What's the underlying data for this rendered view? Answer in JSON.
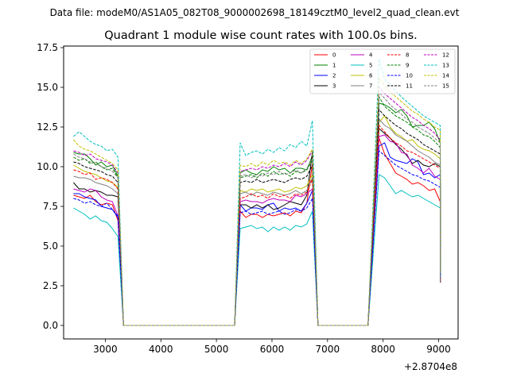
{
  "chart_data": {
    "type": "line",
    "suptitle": "Data file: modeM0/AS1A05_082T08_9000002698_18149cztM0_level2_quad_clean.evt",
    "title": "Quadrant 1 module wise count rates with 100.0s bins.",
    "xlabel": "",
    "ylabel": "",
    "x_offset_label": "+2.8704e8",
    "xlim": [
      2250,
      9350
    ],
    "ylim": [
      -0.85,
      17.6
    ],
    "x_ticks": [
      3000,
      4000,
      5000,
      6000,
      7000,
      8000,
      9000
    ],
    "y_ticks": [
      0.0,
      2.5,
      5.0,
      7.5,
      10.0,
      12.5,
      15.0,
      17.5
    ],
    "x_tick_labels": [
      "3000",
      "4000",
      "5000",
      "6000",
      "7000",
      "8000",
      "9000"
    ],
    "y_tick_labels": [
      "0.0",
      "2.5",
      "5.0",
      "7.5",
      "10.0",
      "12.5",
      "15.0",
      "17.5"
    ],
    "legend_location": "upper right",
    "segments": [
      {
        "x_start": 2427.6,
        "count": 9,
        "gap_after": 21
      },
      {
        "x_start": 5427.6,
        "count": 14,
        "gap_after": 10
      },
      {
        "x_start": 7927.6,
        "count": 12,
        "gap_after": 0
      }
    ],
    "series": [
      {
        "name": "0",
        "color": "#ff0000",
        "dash": "solid",
        "seg_values": [
          [
            8.2,
            8.1,
            8.0,
            8.2,
            7.8,
            7.6,
            7.7,
            7.6,
            6.6
          ],
          [
            7.2,
            6.8,
            7.0,
            7.0,
            6.8,
            7.0,
            6.9,
            7.0,
            7.1,
            6.9,
            7.2,
            7.1,
            7.7,
            10.2
          ],
          [
            11.8,
            10.8,
            10.2,
            9.6,
            9.4,
            9.2,
            8.9,
            9.0,
            8.8,
            8.5,
            8.6,
            7.8
          ]
        ]
      },
      {
        "name": "1",
        "color": "#008000",
        "dash": "solid",
        "seg_values": [
          [
            10.9,
            10.8,
            10.8,
            10.5,
            10.1,
            10.3,
            10.0,
            10.1,
            9.4
          ],
          [
            9.6,
            9.8,
            9.6,
            9.5,
            9.8,
            9.7,
            10.0,
            9.8,
            9.9,
            9.6,
            9.9,
            9.9,
            9.8,
            10.7
          ],
          [
            14.0,
            13.9,
            13.7,
            13.4,
            13.6,
            13.2,
            12.5,
            12.6,
            12.6,
            12.8,
            12.4,
            11.5
          ]
        ]
      },
      {
        "name": "2",
        "color": "#0000ff",
        "dash": "solid",
        "seg_values": [
          [
            8.3,
            8.3,
            8.1,
            8.0,
            7.9,
            7.5,
            7.4,
            7.3,
            6.8
          ],
          [
            7.6,
            7.2,
            7.4,
            7.4,
            7.3,
            7.6,
            7.7,
            7.2,
            7.4,
            7.3,
            7.4,
            7.2,
            7.7,
            8.5
          ],
          [
            11.3,
            11.5,
            10.6,
            10.4,
            10.3,
            10.2,
            10.5,
            10.3,
            9.5,
            9.6,
            9.3,
            9.5
          ]
        ]
      },
      {
        "name": "3",
        "color": "#000000",
        "dash": "solid",
        "seg_values": [
          [
            9.0,
            8.6,
            8.6,
            8.4,
            8.5,
            8.4,
            8.2,
            8.2,
            8.1
          ],
          [
            7.6,
            7.6,
            7.4,
            7.6,
            7.4,
            7.6,
            7.3,
            7.4,
            7.6,
            7.8,
            7.7,
            7.6,
            8.2,
            10.9
          ],
          [
            12.4,
            12.1,
            11.8,
            11.4,
            11.1,
            10.7,
            10.2,
            10.4,
            10.1,
            10.0,
            10.2,
            10.0
          ]
        ]
      },
      {
        "name": "4",
        "color": "#bf00bf",
        "dash": "solid",
        "seg_values": [
          [
            8.6,
            8.5,
            8.4,
            8.6,
            8.5,
            8.1,
            7.9,
            7.8,
            6.9
          ],
          [
            7.8,
            7.9,
            7.8,
            7.8,
            7.7,
            7.9,
            8.0,
            7.9,
            7.9,
            7.8,
            8.2,
            8.1,
            8.3,
            8.6
          ],
          [
            11.9,
            12.0,
            11.6,
            11.5,
            10.9,
            10.8,
            10.1,
            9.9,
            9.6,
            9.9,
            9.4,
            9.2
          ]
        ]
      },
      {
        "name": "5",
        "color": "#00bfbf",
        "dash": "solid",
        "seg_values": [
          [
            7.4,
            7.2,
            7.0,
            6.7,
            6.9,
            6.6,
            6.5,
            6.1,
            5.6
          ],
          [
            6.1,
            6.2,
            6.3,
            6.1,
            6.2,
            5.9,
            6.2,
            6.0,
            6.2,
            6.0,
            6.3,
            6.2,
            6.4,
            7.2
          ],
          [
            9.5,
            9.3,
            8.8,
            8.3,
            8.5,
            8.3,
            8.1,
            8.2,
            8.0,
            7.8,
            7.6,
            7.4
          ]
        ]
      },
      {
        "name": "6",
        "color": "#bfbf00",
        "dash": "solid",
        "seg_values": [
          [
            10.1,
            9.9,
            9.7,
            9.6,
            9.5,
            9.3,
            9.1,
            9.0,
            8.7
          ],
          [
            8.5,
            8.4,
            8.6,
            8.5,
            8.6,
            8.4,
            8.5,
            8.6,
            8.4,
            8.5,
            8.7,
            8.6,
            8.8,
            9.5
          ],
          [
            12.8,
            13.2,
            12.5,
            12.1,
            11.9,
            11.6,
            11.7,
            11.3,
            11.1,
            11.0,
            10.8,
            10.5
          ]
        ]
      },
      {
        "name": "7",
        "color": "#808080",
        "dash": "solid",
        "seg_values": [
          [
            9.4,
            9.3,
            9.3,
            9.2,
            9.0,
            8.9,
            8.8,
            8.6,
            8.3
          ],
          [
            8.3,
            8.4,
            8.2,
            8.4,
            8.3,
            8.2,
            8.4,
            8.3,
            8.2,
            8.3,
            8.5,
            8.3,
            8.5,
            9.3
          ],
          [
            13.0,
            12.6,
            12.4,
            12.0,
            11.8,
            11.6,
            11.3,
            11.0,
            10.8,
            10.6,
            10.3,
            10.1
          ]
        ]
      },
      {
        "name": "8",
        "color": "#ff0000",
        "dash": "dashed",
        "seg_values": [
          [
            9.8,
            9.7,
            9.5,
            9.6,
            9.2,
            9.3,
            9.2,
            9.0,
            8.6
          ],
          [
            8.0,
            8.1,
            8.3,
            8.1,
            8.2,
            8.0,
            8.3,
            8.1,
            8.2,
            8.0,
            8.3,
            8.2,
            8.4,
            9.2
          ],
          [
            12.6,
            12.2,
            11.8,
            11.5,
            11.3,
            11.0,
            10.9,
            10.7,
            10.5,
            10.3,
            10.1,
            9.9
          ]
        ]
      },
      {
        "name": "9",
        "color": "#008000",
        "dash": "dashed",
        "seg_values": [
          [
            10.6,
            10.4,
            10.5,
            10.2,
            10.3,
            10.0,
            9.8,
            9.9,
            9.3
          ],
          [
            9.3,
            9.4,
            9.5,
            9.3,
            9.6,
            9.4,
            9.7,
            9.5,
            9.6,
            9.4,
            9.7,
            9.6,
            9.8,
            10.4
          ],
          [
            14.4,
            13.8,
            13.5,
            13.2,
            13.0,
            12.8,
            12.5,
            12.3,
            12.0,
            11.9,
            11.6,
            11.2
          ]
        ]
      },
      {
        "name": "10",
        "color": "#0000ff",
        "dash": "dashed",
        "seg_values": [
          [
            8.0,
            7.9,
            7.7,
            7.8,
            7.6,
            7.5,
            7.7,
            7.3,
            6.9
          ],
          [
            7.1,
            7.2,
            7.0,
            7.1,
            7.2,
            7.0,
            7.1,
            7.2,
            7.0,
            7.1,
            7.3,
            7.2,
            7.4,
            8.0
          ],
          [
            11.0,
            10.7,
            10.4,
            10.1,
            9.9,
            9.7,
            9.5,
            9.4,
            9.2,
            9.1,
            8.9,
            8.7
          ]
        ]
      },
      {
        "name": "11",
        "color": "#000000",
        "dash": "dashed",
        "seg_values": [
          [
            10.3,
            10.2,
            10.0,
            9.9,
            9.8,
            9.7,
            9.5,
            9.4,
            9.0
          ],
          [
            9.0,
            9.1,
            9.0,
            9.2,
            9.0,
            9.1,
            9.2,
            9.1,
            9.0,
            9.2,
            9.3,
            9.2,
            9.4,
            10.1
          ],
          [
            13.6,
            13.2,
            12.9,
            12.6,
            12.4,
            12.1,
            11.9,
            11.7,
            11.4,
            11.2,
            11.0,
            10.8
          ]
        ]
      },
      {
        "name": "12",
        "color": "#bf00bf",
        "dash": "dashed",
        "seg_values": [
          [
            11.0,
            10.9,
            10.7,
            10.8,
            10.5,
            10.4,
            10.3,
            10.1,
            9.6
          ],
          [
            9.7,
            9.8,
            9.9,
            9.8,
            10.0,
            9.9,
            10.1,
            10.0,
            10.2,
            10.0,
            10.3,
            10.1,
            10.4,
            11.0
          ],
          [
            15.0,
            14.6,
            14.3,
            14.0,
            13.7,
            13.4,
            13.1,
            12.9,
            12.6,
            12.4,
            12.1,
            11.7
          ]
        ]
      },
      {
        "name": "13",
        "color": "#00bfbf",
        "dash": "dashed",
        "seg_values": [
          [
            11.9,
            12.2,
            11.9,
            11.6,
            11.4,
            11.3,
            11.0,
            11.1,
            10.6
          ],
          [
            11.5,
            10.7,
            10.9,
            11.0,
            10.8,
            11.1,
            10.9,
            11.2,
            11.0,
            11.4,
            11.2,
            11.6,
            11.3,
            12.9
          ],
          [
            16.8,
            15.5,
            15.2,
            14.8,
            14.4,
            14.1,
            13.8,
            13.5,
            13.2,
            13.0,
            12.8,
            12.6
          ]
        ]
      },
      {
        "name": "14",
        "color": "#bfbf00",
        "dash": "dashed",
        "seg_values": [
          [
            11.7,
            11.3,
            11.1,
            11.0,
            10.8,
            10.6,
            10.4,
            10.2,
            9.8
          ],
          [
            10.1,
            10.0,
            10.2,
            10.0,
            10.3,
            10.1,
            10.4,
            10.2,
            10.3,
            10.1,
            10.4,
            10.2,
            10.5,
            11.1
          ],
          [
            15.6,
            15.1,
            14.7,
            14.4,
            14.1,
            13.8,
            13.5,
            13.3,
            13.0,
            12.8,
            12.5,
            12.3
          ]
        ]
      },
      {
        "name": "15",
        "color": "#808080",
        "dash": "dashed",
        "seg_values": [
          [
            10.8,
            10.6,
            10.5,
            10.3,
            10.2,
            10.0,
            9.9,
            9.7,
            9.3
          ],
          [
            9.4,
            9.5,
            9.3,
            9.5,
            9.4,
            9.6,
            9.5,
            9.7,
            9.5,
            9.6,
            9.8,
            9.6,
            9.9,
            10.5
          ],
          [
            14.7,
            14.3,
            13.9,
            13.6,
            13.3,
            13.0,
            12.8,
            12.5,
            12.3,
            12.1,
            11.8,
            11.5
          ]
        ]
      }
    ]
  }
}
